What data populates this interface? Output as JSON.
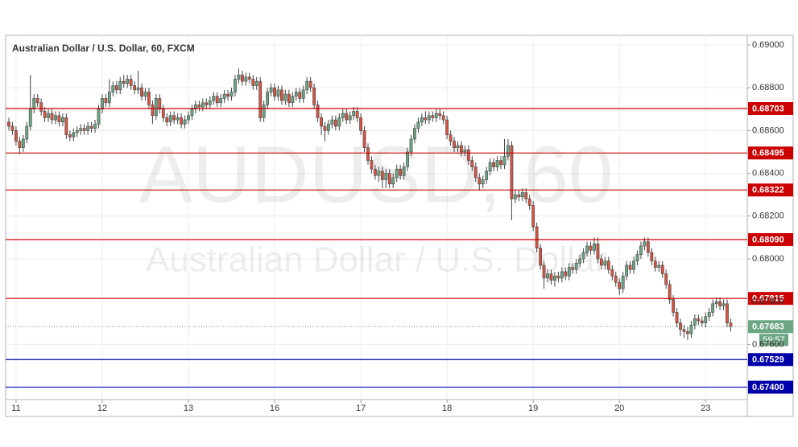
{
  "chart_data": {
    "type": "candlestick",
    "title": "Australian Dollar / U.S. Dollar, 60, FXCM",
    "watermark": [
      "AUDUSD, 60",
      "Australian Dollar / U.S. Dollar"
    ],
    "categories": [
      null,
      null,
      "11",
      null,
      null,
      null,
      null,
      null,
      null,
      null,
      null,
      null,
      null,
      null,
      null,
      null,
      null,
      null,
      null,
      null,
      null,
      null,
      null,
      null,
      null,
      null,
      "12",
      null,
      null,
      null,
      null,
      null,
      null,
      null,
      null,
      null,
      null,
      null,
      null,
      null,
      null,
      null,
      null,
      null,
      null,
      null,
      null,
      null,
      null,
      null,
      "13",
      null,
      null,
      null,
      null,
      null,
      null,
      null,
      null,
      null,
      null,
      null,
      null,
      null,
      null,
      null,
      null,
      null,
      null,
      null,
      null,
      null,
      null,
      null,
      "16",
      null,
      null,
      null,
      null,
      null,
      null,
      null,
      null,
      null,
      null,
      null,
      null,
      null,
      null,
      null,
      null,
      null,
      null,
      null,
      null,
      null,
      null,
      null,
      "17",
      null,
      null,
      null,
      null,
      null,
      null,
      null,
      null,
      null,
      null,
      null,
      null,
      null,
      null,
      null,
      null,
      null,
      null,
      null,
      null,
      null,
      null,
      null,
      "18",
      null,
      null,
      null,
      null,
      null,
      null,
      null,
      null,
      null,
      null,
      null,
      null,
      null,
      null,
      null,
      null,
      null,
      null,
      null,
      null,
      null,
      null,
      null,
      "19",
      null,
      null,
      null,
      null,
      null,
      null,
      null,
      null,
      null,
      null,
      null,
      null,
      null,
      null,
      null,
      null,
      null,
      null,
      null,
      null,
      null,
      null,
      null,
      "20",
      null,
      null,
      null,
      null,
      null,
      null,
      null,
      null,
      null,
      null,
      null,
      null,
      null,
      null,
      null,
      null,
      null,
      null,
      null,
      null,
      null,
      null,
      null,
      "23",
      null,
      null,
      null,
      null,
      null,
      null,
      null
    ],
    "series": [
      {
        "up_color": "#6ba583",
        "down_color": "#d75442",
        "open": [
          0.6864,
          0.6862,
          0.686,
          0.6855,
          0.6852,
          0.6856,
          0.6862,
          0.687,
          0.6875,
          0.6873,
          0.6869,
          0.6866,
          0.6868,
          0.6865,
          0.6867,
          0.6864,
          0.6866,
          0.6858,
          0.6857,
          0.6859,
          0.686,
          0.6861,
          0.686,
          0.6862,
          0.6861,
          0.6863,
          0.687,
          0.6875,
          0.6873,
          0.6878,
          0.6881,
          0.6879,
          0.6883,
          0.6882,
          0.6884,
          0.6881,
          0.6879,
          0.688,
          0.6876,
          0.6878,
          0.6872,
          0.6867,
          0.6875,
          0.687,
          0.6866,
          0.6864,
          0.6867,
          0.6865,
          0.6866,
          0.6863,
          0.6865,
          0.6867,
          0.687,
          0.6872,
          0.6871,
          0.6873,
          0.6872,
          0.6874,
          0.6876,
          0.6873,
          0.6875,
          0.6877,
          0.6876,
          0.6878,
          0.6884,
          0.6886,
          0.6883,
          0.6885,
          0.6884,
          0.6881,
          0.6883,
          0.6866,
          0.6872,
          0.6878,
          0.688,
          0.6876,
          0.6879,
          0.6874,
          0.6877,
          0.6873,
          0.6876,
          0.6878,
          0.6875,
          0.6879,
          0.6883,
          0.688,
          0.6872,
          0.6866,
          0.6862,
          0.686,
          0.6863,
          0.6865,
          0.6862,
          0.6866,
          0.6868,
          0.6865,
          0.6867,
          0.6869,
          0.6866,
          0.686,
          0.6852,
          0.6846,
          0.6842,
          0.6839,
          0.6841,
          0.6837,
          0.684,
          0.6835,
          0.6838,
          0.6842,
          0.6839,
          0.6843,
          0.685,
          0.6856,
          0.6861,
          0.6864,
          0.6866,
          0.6865,
          0.6867,
          0.6866,
          0.6868,
          0.6867,
          0.6865,
          0.6858,
          0.6855,
          0.6852,
          0.6853,
          0.685,
          0.6851,
          0.6846,
          0.6843,
          0.6838,
          0.6835,
          0.6837,
          0.6841,
          0.6845,
          0.6843,
          0.6846,
          0.6844,
          0.6848,
          0.6853,
          0.6828,
          0.683,
          0.6829,
          0.6831,
          0.6828,
          0.6825,
          0.6815,
          0.6805,
          0.6797,
          0.6791,
          0.6793,
          0.679,
          0.6792,
          0.6791,
          0.6794,
          0.6792,
          0.6796,
          0.6795,
          0.6798,
          0.68,
          0.6803,
          0.6806,
          0.6804,
          0.6807,
          0.68,
          0.6797,
          0.6799,
          0.6795,
          0.6792,
          0.6789,
          0.6786,
          0.6792,
          0.6797,
          0.6795,
          0.6799,
          0.6802,
          0.6806,
          0.6808,
          0.6803,
          0.6799,
          0.6796,
          0.6797,
          0.6793,
          0.6788,
          0.6781,
          0.6775,
          0.677,
          0.6767,
          0.6766,
          0.6765,
          0.6769,
          0.6772,
          0.6771,
          0.677,
          0.6773,
          0.6775,
          0.6779,
          0.678,
          0.6778,
          0.6779,
          0.677
        ],
        "high": [
          0.6866,
          0.6864,
          0.6862,
          0.6857,
          0.6858,
          0.6864,
          0.6886,
          0.6877,
          0.6877,
          0.6875,
          0.6871,
          0.687,
          0.687,
          0.6869,
          0.6869,
          0.6868,
          0.6868,
          0.686,
          0.6861,
          0.6862,
          0.6863,
          0.6863,
          0.6864,
          0.6864,
          0.6865,
          0.6872,
          0.6877,
          0.6877,
          0.6884,
          0.6883,
          0.6883,
          0.6885,
          0.6886,
          0.6886,
          0.6886,
          0.6883,
          0.6888,
          0.6882,
          0.688,
          0.688,
          0.6874,
          0.6877,
          0.6877,
          0.6872,
          0.6868,
          0.6869,
          0.6869,
          0.6868,
          0.6868,
          0.6867,
          0.6869,
          0.6872,
          0.6874,
          0.6874,
          0.6875,
          0.6875,
          0.6876,
          0.6878,
          0.6878,
          0.6877,
          0.6879,
          0.6879,
          0.688,
          0.6886,
          0.6889,
          0.6888,
          0.6887,
          0.6887,
          0.6886,
          0.6885,
          0.6885,
          0.6874,
          0.688,
          0.6882,
          0.6882,
          0.6881,
          0.6881,
          0.6879,
          0.6879,
          0.6878,
          0.688,
          0.688,
          0.6881,
          0.6885,
          0.6885,
          0.6882,
          0.6874,
          0.6868,
          0.6864,
          0.6865,
          0.6867,
          0.6867,
          0.6868,
          0.687,
          0.687,
          0.6869,
          0.6871,
          0.6871,
          0.6868,
          0.6862,
          0.6854,
          0.6848,
          0.6844,
          0.6843,
          0.6843,
          0.6842,
          0.6842,
          0.684,
          0.6844,
          0.6844,
          0.6845,
          0.6852,
          0.6858,
          0.6863,
          0.6866,
          0.6868,
          0.6869,
          0.6869,
          0.6869,
          0.687,
          0.687,
          0.6869,
          0.6867,
          0.686,
          0.6857,
          0.6855,
          0.6855,
          0.6853,
          0.6853,
          0.6848,
          0.6845,
          0.684,
          0.6839,
          0.6843,
          0.6847,
          0.6847,
          0.6848,
          0.6848,
          0.6856,
          0.6856,
          0.6855,
          0.6832,
          0.6832,
          0.6833,
          0.6833,
          0.683,
          0.6827,
          0.6817,
          0.6807,
          0.6799,
          0.6795,
          0.6795,
          0.6794,
          0.6794,
          0.6796,
          0.6796,
          0.6798,
          0.6798,
          0.68,
          0.6802,
          0.6805,
          0.6808,
          0.6808,
          0.681,
          0.681,
          0.6802,
          0.6801,
          0.6801,
          0.6797,
          0.6794,
          0.6791,
          0.6794,
          0.6799,
          0.6799,
          0.6801,
          0.6804,
          0.6808,
          0.681,
          0.681,
          0.6805,
          0.6801,
          0.6799,
          0.6799,
          0.6795,
          0.679,
          0.6783,
          0.6777,
          0.6772,
          0.6769,
          0.6768,
          0.6771,
          0.6774,
          0.6774,
          0.6773,
          0.6775,
          0.6777,
          0.6781,
          0.6782,
          0.6782,
          0.6781,
          0.6781,
          0.6772
        ],
        "low": [
          0.686,
          0.6858,
          0.6853,
          0.6849,
          0.685,
          0.6854,
          0.686,
          0.6868,
          0.6871,
          0.6867,
          0.6864,
          0.6864,
          0.6863,
          0.6863,
          0.6862,
          0.6862,
          0.6856,
          0.6855,
          0.6855,
          0.6857,
          0.6858,
          0.6858,
          0.6858,
          0.6859,
          0.6859,
          0.6861,
          0.6868,
          0.6871,
          0.6871,
          0.6876,
          0.6877,
          0.6877,
          0.688,
          0.688,
          0.6879,
          0.6877,
          0.6877,
          0.6874,
          0.6874,
          0.687,
          0.6863,
          0.6865,
          0.6868,
          0.6864,
          0.6862,
          0.6862,
          0.6863,
          0.6863,
          0.6861,
          0.6861,
          0.6863,
          0.6865,
          0.6868,
          0.6869,
          0.6869,
          0.687,
          0.687,
          0.6872,
          0.6871,
          0.6871,
          0.6873,
          0.6874,
          0.6874,
          0.6876,
          0.6882,
          0.6881,
          0.6881,
          0.6882,
          0.6879,
          0.6879,
          0.6864,
          0.6864,
          0.687,
          0.6876,
          0.6874,
          0.6874,
          0.6872,
          0.6872,
          0.6871,
          0.6871,
          0.6874,
          0.6873,
          0.6873,
          0.6877,
          0.6878,
          0.687,
          0.6864,
          0.6858,
          0.6855,
          0.6858,
          0.6861,
          0.686,
          0.686,
          0.6864,
          0.6863,
          0.6863,
          0.6865,
          0.6864,
          0.6858,
          0.685,
          0.6844,
          0.684,
          0.6837,
          0.6836,
          0.6833,
          0.6833,
          0.6833,
          0.6833,
          0.6836,
          0.6837,
          0.6837,
          0.6841,
          0.6848,
          0.6854,
          0.6859,
          0.6862,
          0.6863,
          0.6863,
          0.6864,
          0.6864,
          0.6865,
          0.6863,
          0.6856,
          0.6853,
          0.685,
          0.685,
          0.6848,
          0.6848,
          0.6844,
          0.6841,
          0.6836,
          0.6832,
          0.6833,
          0.6835,
          0.6839,
          0.6841,
          0.6841,
          0.6842,
          0.6842,
          0.6846,
          0.6818,
          0.6826,
          0.6827,
          0.6827,
          0.6826,
          0.6823,
          0.6813,
          0.6803,
          0.6795,
          0.6786,
          0.6789,
          0.6788,
          0.6787,
          0.6789,
          0.6789,
          0.679,
          0.679,
          0.6793,
          0.6793,
          0.6796,
          0.6798,
          0.6801,
          0.6802,
          0.6802,
          0.6798,
          0.6795,
          0.6795,
          0.6793,
          0.679,
          0.6787,
          0.6783,
          0.6784,
          0.679,
          0.6793,
          0.6793,
          0.6797,
          0.68,
          0.6804,
          0.6801,
          0.6797,
          0.6794,
          0.6794,
          0.6791,
          0.6786,
          0.6779,
          0.6773,
          0.6768,
          0.6764,
          0.6763,
          0.6762,
          0.6763,
          0.6767,
          0.6769,
          0.6768,
          0.6768,
          0.6771,
          0.6773,
          0.6777,
          0.6776,
          0.6776,
          0.6768,
          0.6766
        ],
        "close": [
          0.6862,
          0.686,
          0.6855,
          0.6852,
          0.6856,
          0.6862,
          0.687,
          0.6875,
          0.6873,
          0.6869,
          0.6866,
          0.6868,
          0.6865,
          0.6867,
          0.6864,
          0.6866,
          0.6858,
          0.6857,
          0.6859,
          0.686,
          0.6861,
          0.686,
          0.6862,
          0.6861,
          0.6863,
          0.687,
          0.6875,
          0.6873,
          0.6878,
          0.6881,
          0.6879,
          0.6883,
          0.6882,
          0.6884,
          0.6881,
          0.6879,
          0.688,
          0.6876,
          0.6878,
          0.6872,
          0.6867,
          0.6875,
          0.687,
          0.6866,
          0.6864,
          0.6867,
          0.6865,
          0.6866,
          0.6863,
          0.6865,
          0.6867,
          0.687,
          0.6872,
          0.6871,
          0.6873,
          0.6872,
          0.6874,
          0.6876,
          0.6873,
          0.6875,
          0.6877,
          0.6876,
          0.6878,
          0.6884,
          0.6886,
          0.6883,
          0.6885,
          0.6884,
          0.6881,
          0.6883,
          0.6866,
          0.6872,
          0.6878,
          0.688,
          0.6876,
          0.6879,
          0.6874,
          0.6877,
          0.6873,
          0.6876,
          0.6878,
          0.6875,
          0.6879,
          0.6883,
          0.688,
          0.6872,
          0.6866,
          0.6862,
          0.686,
          0.6863,
          0.6865,
          0.6862,
          0.6866,
          0.6868,
          0.6865,
          0.6867,
          0.6869,
          0.6866,
          0.686,
          0.6852,
          0.6846,
          0.6842,
          0.6839,
          0.6841,
          0.6837,
          0.684,
          0.6835,
          0.6838,
          0.6842,
          0.6839,
          0.6843,
          0.685,
          0.6856,
          0.6861,
          0.6864,
          0.6866,
          0.6865,
          0.6867,
          0.6866,
          0.6868,
          0.6867,
          0.6865,
          0.6858,
          0.6855,
          0.6852,
          0.6853,
          0.685,
          0.6851,
          0.6846,
          0.6843,
          0.6838,
          0.6835,
          0.6837,
          0.6841,
          0.6845,
          0.6843,
          0.6846,
          0.6844,
          0.6848,
          0.6853,
          0.6828,
          0.683,
          0.6829,
          0.6831,
          0.6828,
          0.6825,
          0.6815,
          0.6805,
          0.6797,
          0.6791,
          0.6793,
          0.679,
          0.6792,
          0.6791,
          0.6794,
          0.6792,
          0.6796,
          0.6795,
          0.6798,
          0.68,
          0.6803,
          0.6806,
          0.6804,
          0.6807,
          0.68,
          0.6797,
          0.6799,
          0.6795,
          0.6792,
          0.6789,
          0.6786,
          0.6792,
          0.6797,
          0.6795,
          0.6799,
          0.6802,
          0.6806,
          0.6808,
          0.6803,
          0.6799,
          0.6796,
          0.6797,
          0.6793,
          0.6788,
          0.6781,
          0.6775,
          0.677,
          0.6767,
          0.6766,
          0.6765,
          0.6769,
          0.6772,
          0.6771,
          0.677,
          0.6773,
          0.6775,
          0.6779,
          0.678,
          0.6778,
          0.6779,
          0.677,
          0.67683
        ]
      }
    ],
    "ylim": [
      0.67342,
      0.69045
    ],
    "yticks": [
      {
        "value": 0.69,
        "label": "0.69000"
      },
      {
        "value": 0.688,
        "label": "0.68800"
      },
      {
        "value": 0.686,
        "label": "0.68600"
      },
      {
        "value": 0.684,
        "label": "0.68400"
      },
      {
        "value": 0.682,
        "label": "0.68200"
      },
      {
        "value": 0.68,
        "label": "0.68000"
      },
      {
        "value": 0.678,
        "label": "0.67800"
      },
      {
        "value": 0.676,
        "label": "0.67600"
      }
    ],
    "grid": true,
    "levels": [
      {
        "value": 0.68703,
        "color": "#cc0000"
      },
      {
        "value": 0.68495,
        "color": "#cc0000"
      },
      {
        "value": 0.68322,
        "color": "#cc0000"
      },
      {
        "value": 0.6809,
        "label": "0.68090",
        "color": "#cc0000"
      },
      {
        "value": 0.67815,
        "color": "#cc0000"
      },
      {
        "value": 0.67529,
        "color": "#0000aa"
      },
      {
        "value": 0.674,
        "label": "0.67400",
        "color": "#0000aa"
      }
    ],
    "last_price": 0.67683,
    "last_price_color": "#6ba583",
    "countdown": "59:57"
  }
}
